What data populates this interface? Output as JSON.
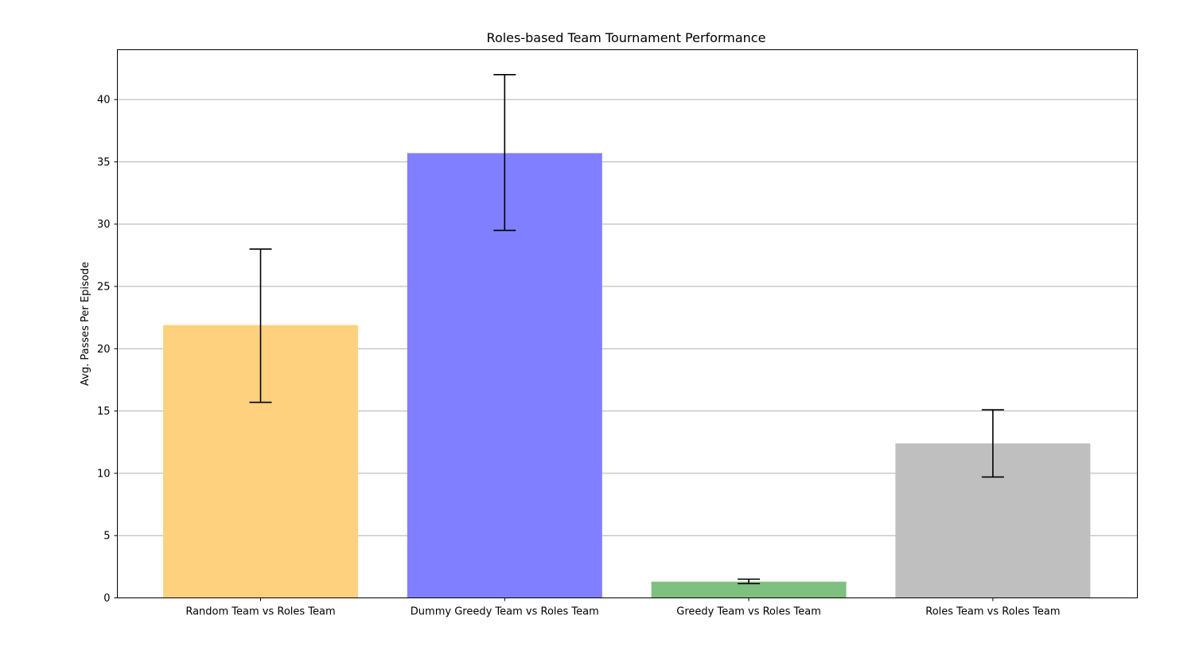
{
  "chart_data": {
    "type": "bar",
    "title": "Roles-based Team Tournament Performance",
    "xlabel": "",
    "ylabel": "Avg. Passes Per Episode",
    "categories": [
      "Random Team vs Roles Team",
      "Dummy Greedy Team vs Roles Team",
      "Greedy Team vs Roles Team",
      "Roles Team vs Roles Team"
    ],
    "values": [
      21.9,
      35.7,
      1.3,
      12.4
    ],
    "error_low": [
      15.7,
      29.5,
      1.15,
      9.7
    ],
    "error_high": [
      28.0,
      42.0,
      1.5,
      15.1
    ],
    "colors": [
      "#fed17f",
      "#807fff",
      "#7fbf7f",
      "#bfbfbf"
    ],
    "ylim": [
      0,
      44
    ],
    "yticks": [
      0,
      5,
      10,
      15,
      20,
      25,
      30,
      35,
      40
    ],
    "grid": "y"
  }
}
